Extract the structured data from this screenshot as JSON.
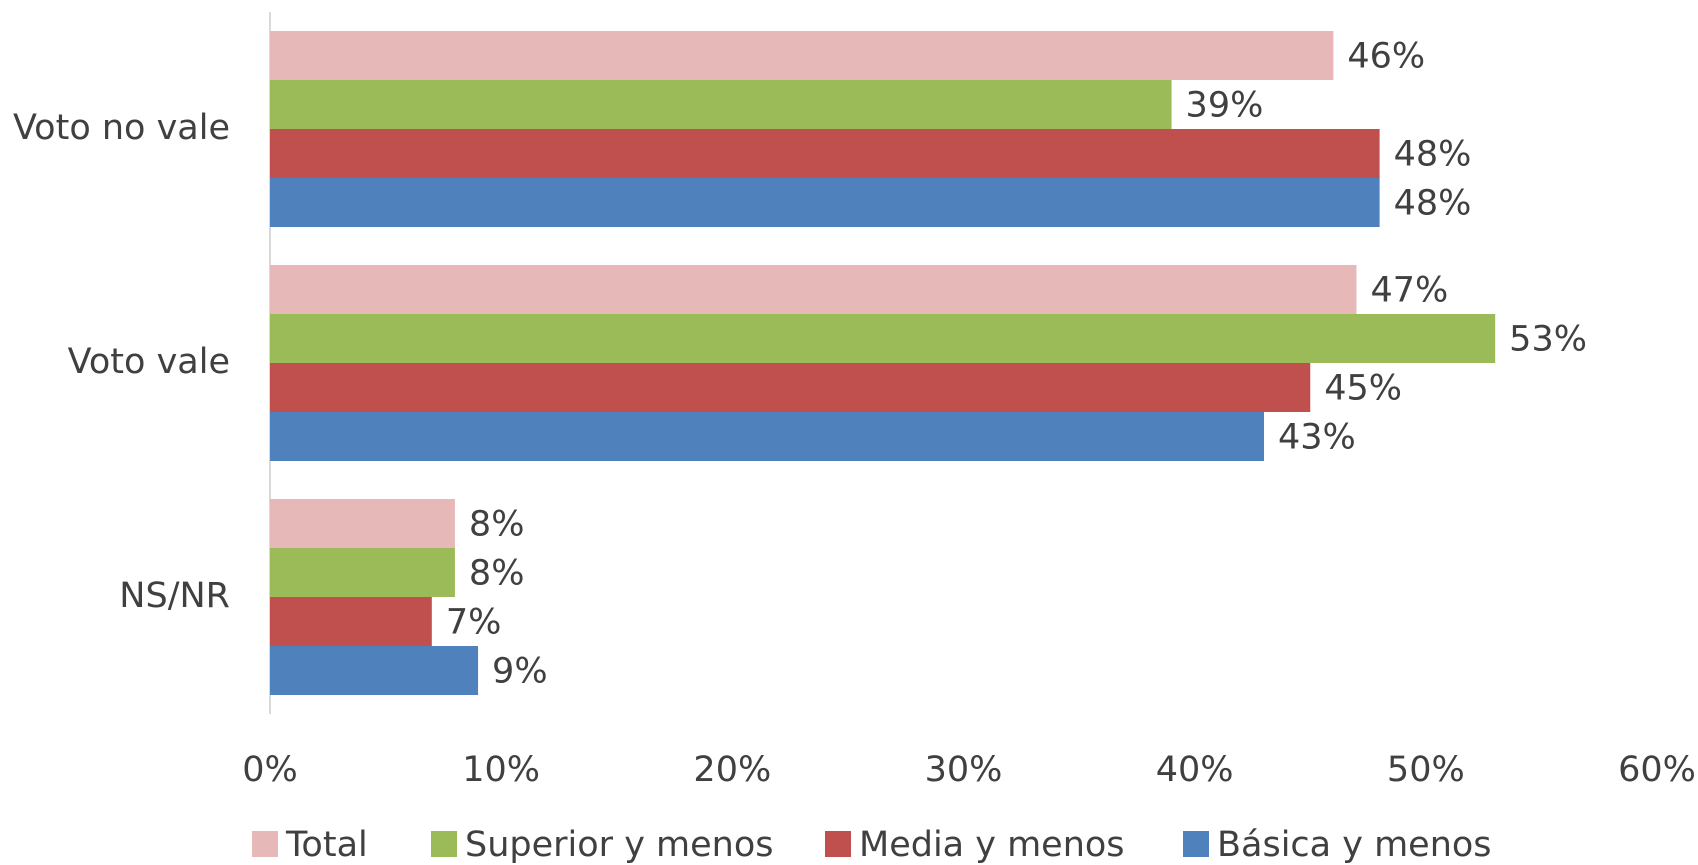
{
  "chart_data": {
    "type": "bar",
    "orientation": "horizontal",
    "categories": [
      "Voto no vale",
      "Voto vale",
      "NS/NR"
    ],
    "series": [
      {
        "name": "Total",
        "color": "#e6b8b7",
        "values": [
          46,
          47,
          8
        ],
        "value_labels": [
          "46%",
          "47%",
          "8%"
        ]
      },
      {
        "name": "Superior y menos",
        "color": "#9bbb59",
        "values": [
          39,
          53,
          8
        ],
        "value_labels": [
          "39%",
          "53%",
          "8%"
        ]
      },
      {
        "name": "Media y menos",
        "color": "#c0504d",
        "values": [
          48,
          45,
          7
        ],
        "value_labels": [
          "48%",
          "45%",
          "7%"
        ]
      },
      {
        "name": "Básica y menos",
        "color": "#4f81bd",
        "values": [
          48,
          43,
          9
        ],
        "value_labels": [
          "48%",
          "43%",
          "9%"
        ]
      }
    ],
    "xlim": [
      0,
      60
    ],
    "xticks": [
      {
        "value": 0,
        "label": "0%"
      },
      {
        "value": 10,
        "label": "10%"
      },
      {
        "value": 20,
        "label": "20%"
      },
      {
        "value": 30,
        "label": "30%"
      },
      {
        "value": 40,
        "label": "40%"
      },
      {
        "value": 50,
        "label": "50%"
      },
      {
        "value": 60,
        "label": "60%"
      }
    ],
    "legend": "bottom"
  }
}
